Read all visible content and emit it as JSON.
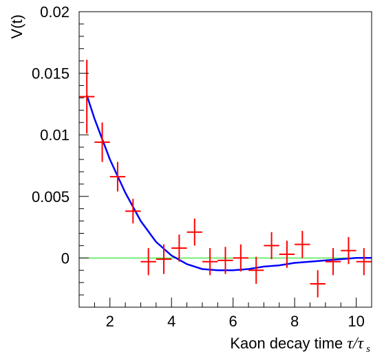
{
  "chart_data": {
    "type": "scatter",
    "title": "",
    "xlabel": "Kaon decay time",
    "xlabel_symbol": "τ/τ",
    "xlabel_subscript": "s",
    "ylabel": "V(t)",
    "xlim": [
      1,
      10.5
    ],
    "ylim": [
      -0.004,
      0.02
    ],
    "x_ticks": [
      2,
      4,
      6,
      8,
      10
    ],
    "x_tick_labels": [
      "2",
      "4",
      "6",
      "8",
      "10"
    ],
    "y_ticks": [
      0,
      0.005,
      0.01,
      0.015,
      0.02
    ],
    "y_tick_labels": [
      "0",
      "0.005",
      "0.01",
      "0.015",
      "0.02"
    ],
    "grid": false,
    "colors": {
      "data": "#ff0000",
      "fit": "#0000ff",
      "zero_line": "#00dd00",
      "axes": "#000000"
    },
    "series": [
      {
        "kind": "points_with_errors",
        "x": [
          1.25,
          1.75,
          2.25,
          2.75,
          3.25,
          3.75,
          4.25,
          4.75,
          5.25,
          5.75,
          6.25,
          6.75,
          7.25,
          7.75,
          8.25,
          8.75,
          9.25,
          9.75,
          10.25
        ],
        "y": [
          0.0131,
          0.0094,
          0.0066,
          0.0038,
          -0.0003,
          -0.0001,
          0.0008,
          0.0021,
          -0.0003,
          -0.0002,
          0.0,
          -0.001,
          0.001,
          0.0003,
          0.0011,
          -0.0021,
          -0.0003,
          0.0006,
          -0.0003
        ],
        "xerr": 0.25,
        "yerr": [
          0.003,
          0.0016,
          0.0012,
          0.001,
          0.0011,
          0.0012,
          0.0011,
          0.0011,
          0.0011,
          0.0011,
          0.0011,
          0.0011,
          0.0011,
          0.0011,
          0.0011,
          0.0011,
          0.0011,
          0.0011,
          0.0011
        ]
      },
      {
        "kind": "curve",
        "x": [
          1.25,
          1.5,
          2.0,
          2.5,
          3.0,
          3.5,
          4.0,
          4.5,
          5.0,
          5.5,
          6.0,
          6.5,
          7.0,
          7.5,
          8.0,
          8.5,
          9.0,
          9.5,
          10.0,
          10.5
        ],
        "y": [
          0.0132,
          0.0113,
          0.008,
          0.0053,
          0.003,
          0.0013,
          0.0002,
          -0.0005,
          -0.0009,
          -0.001,
          -0.001,
          -0.0009,
          -0.0007,
          -0.0006,
          -0.0004,
          -0.0003,
          -0.0002,
          -0.0001,
          0.0,
          0.0
        ]
      }
    ],
    "zero_line": 0
  }
}
